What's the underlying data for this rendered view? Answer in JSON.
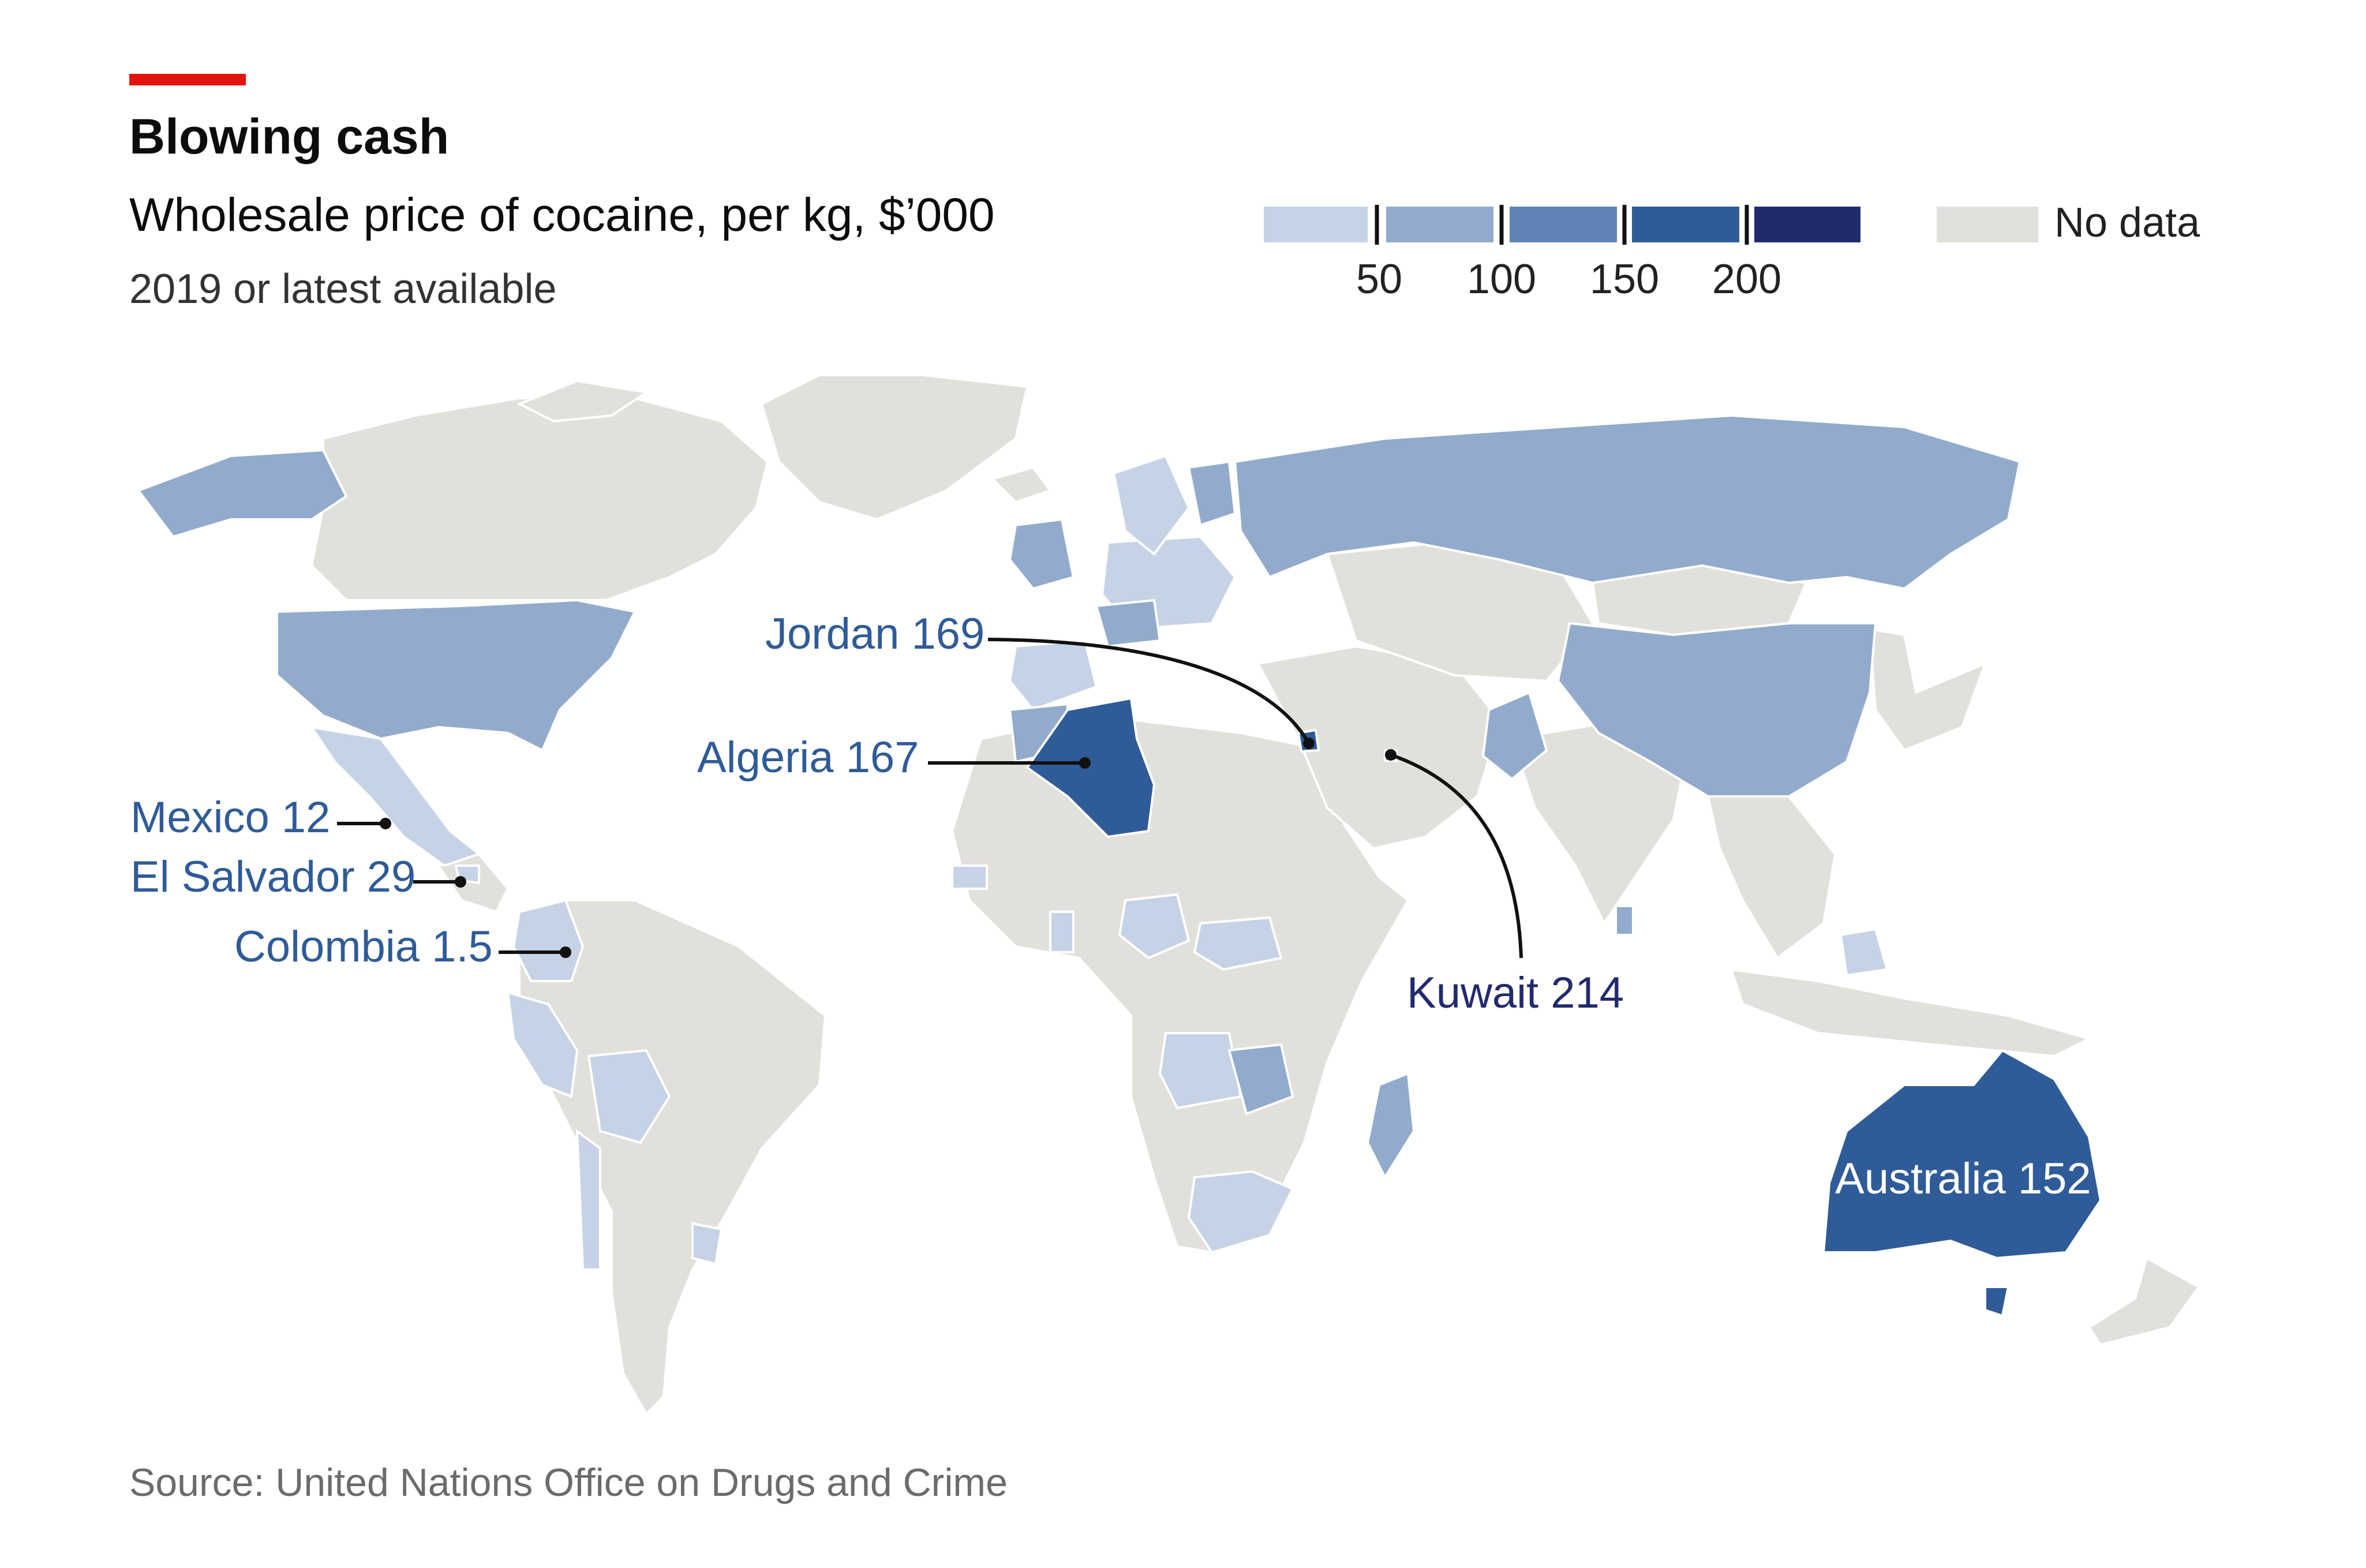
{
  "header": {
    "title": "Blowing cash",
    "subtitle": "Wholesale price of cocaine, per kg, $’000",
    "period": "2019 or latest available"
  },
  "legend": {
    "thresholds": [
      "50",
      "100",
      "150",
      "200"
    ],
    "no_data_label": "No data",
    "colors": [
      "#c6d3e6",
      "#92abcc",
      "#5f84b5",
      "#2f5b98",
      "#222a6e"
    ],
    "no_data_color": "#e2e0da"
  },
  "chart_data": {
    "type": "choropleth",
    "unit": "$’000 per kg",
    "legend_bins": [
      0,
      50,
      100,
      150,
      200
    ],
    "labelled_countries": [
      {
        "name": "Jordan",
        "value": 169
      },
      {
        "name": "Algeria",
        "value": 167
      },
      {
        "name": "Mexico",
        "value": 12
      },
      {
        "name": "El Salvador",
        "value": 29
      },
      {
        "name": "Colombia",
        "value": 1.5
      },
      {
        "name": "Kuwait",
        "value": 214
      },
      {
        "name": "Australia",
        "value": 152
      }
    ],
    "colors": {
      "ocean": "#ffffff",
      "no_data": "#e2e0da",
      "bin_0_50": "#c6d3e6",
      "bin_50_100": "#92abcc",
      "bin_100_150": "#5f84b5",
      "bin_150_200": "#2f5b98",
      "bin_200_plus": "#222a6e",
      "label_blue": "#2f5b98",
      "label_navy": "#222a6e"
    }
  },
  "source": "Source: United Nations Office on Drugs and Crime"
}
